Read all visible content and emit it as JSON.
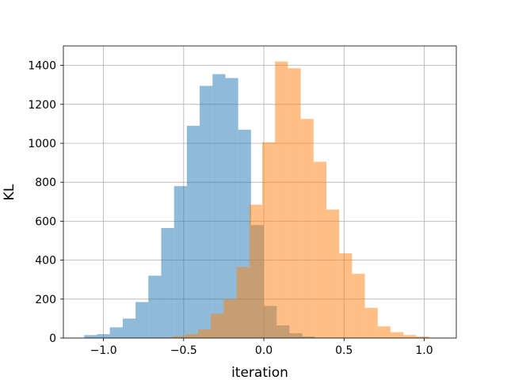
{
  "chart_data": {
    "type": "bar",
    "xlabel": "iteration",
    "ylabel": "KL",
    "xlim": [
      -1.25,
      1.2
    ],
    "ylim": [
      0,
      1500
    ],
    "xticks": [
      -1.0,
      -0.5,
      0.0,
      0.5,
      1.0
    ],
    "xtick_labels": [
      "−1.0",
      "−0.5",
      "0.0",
      "0.5",
      "1.0"
    ],
    "yticks": [
      0,
      200,
      400,
      600,
      800,
      1000,
      1200,
      1400
    ],
    "ytick_labels": [
      "0",
      "200",
      "400",
      "600",
      "800",
      "1000",
      "1200",
      "1400"
    ],
    "grid": true,
    "series": [
      {
        "color": "#1f77b4",
        "opacity": 0.5,
        "bin_width": 0.08,
        "bin_starts": [
          -1.12,
          -1.04,
          -0.96,
          -0.88,
          -0.8,
          -0.72,
          -0.64,
          -0.56,
          -0.48,
          -0.4,
          -0.32,
          -0.24,
          -0.16,
          -0.08,
          0.0,
          0.08,
          0.16,
          0.24,
          0.32
        ],
        "values": [
          15,
          20,
          55,
          100,
          185,
          320,
          565,
          780,
          1090,
          1295,
          1355,
          1335,
          1070,
          580,
          165,
          65,
          25,
          8,
          2
        ]
      },
      {
        "color": "#ff7f0e",
        "opacity": 0.5,
        "bin_width": 0.08,
        "bin_starts": [
          -0.65,
          -0.57,
          -0.49,
          -0.41,
          -0.33,
          -0.25,
          -0.17,
          -0.09,
          -0.01,
          0.07,
          0.15,
          0.23,
          0.31,
          0.39,
          0.47,
          0.55,
          0.63,
          0.71,
          0.79,
          0.87,
          0.95
        ],
        "values": [
          3,
          10,
          20,
          45,
          125,
          200,
          365,
          685,
          1005,
          1420,
          1385,
          1125,
          905,
          660,
          435,
          330,
          155,
          60,
          30,
          15,
          8
        ]
      }
    ]
  }
}
